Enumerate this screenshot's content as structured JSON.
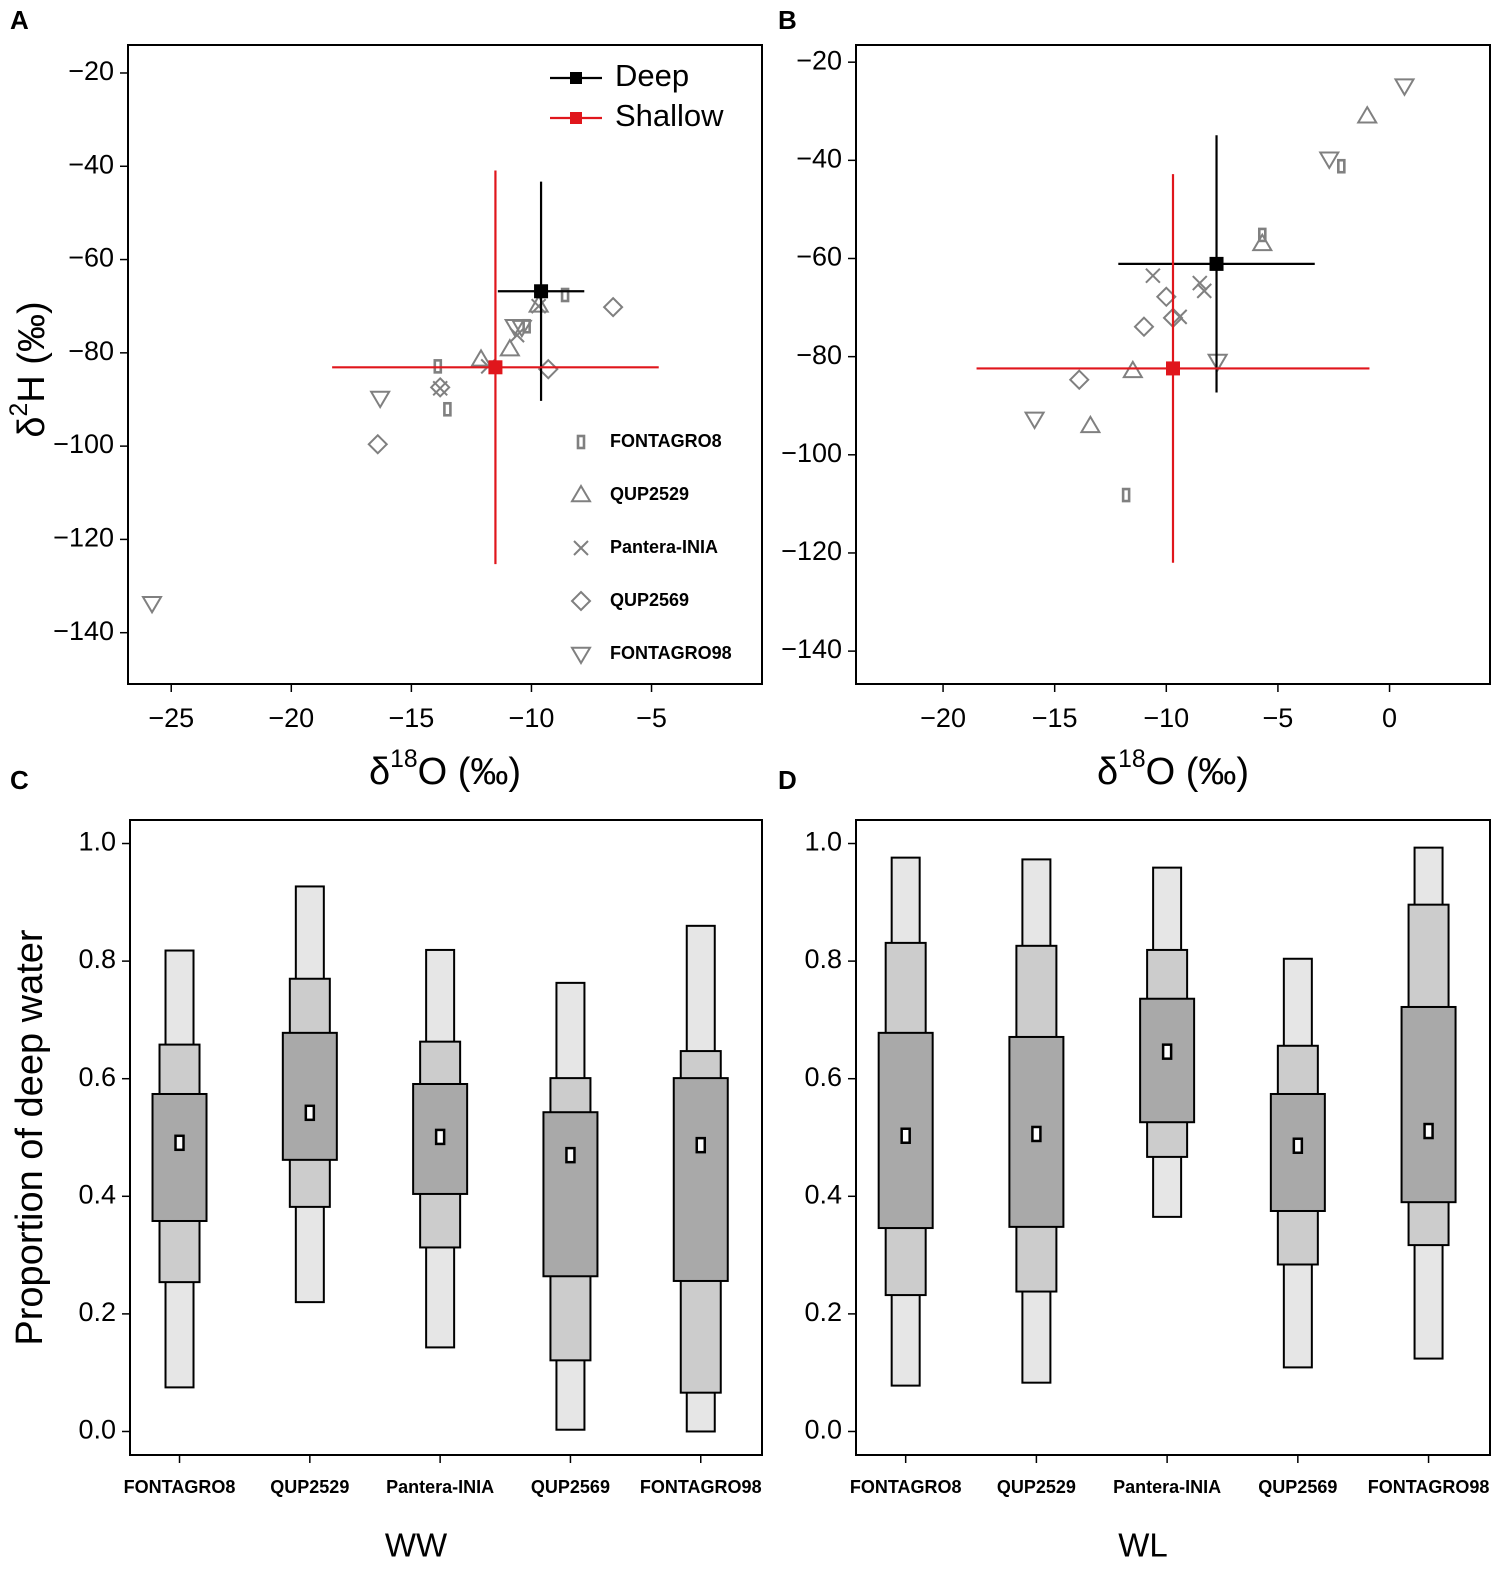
{
  "chart_data": [
    {
      "type": "scatter",
      "panel": "A",
      "xlabel": {
        "prefix": "δ",
        "sup": "18",
        "rest": "O (‰)"
      },
      "ylabel": {
        "prefix": "δ",
        "sup": "2",
        "rest": "H (‰)"
      },
      "xlim": [
        -26.8,
        -0.4
      ],
      "ylim": [
        -151,
        -14
      ],
      "xticks": [
        {
          "value": -25,
          "label": "−25"
        },
        {
          "value": -20,
          "label": "−20"
        },
        {
          "value": -15,
          "label": "−15"
        },
        {
          "value": -10,
          "label": "−10"
        },
        {
          "value": -5,
          "label": "−5"
        }
      ],
      "yticks": [
        {
          "value": -20,
          "label": "−20"
        },
        {
          "value": -40,
          "label": "−40"
        },
        {
          "value": -60,
          "label": "−60"
        },
        {
          "value": -80,
          "label": "−80"
        },
        {
          "value": -100,
          "label": "−100"
        },
        {
          "value": -120,
          "label": "−120"
        },
        {
          "value": -140,
          "label": "−140"
        }
      ],
      "legend": "upper right",
      "marker_legend": "lower right",
      "sources": [
        {
          "name": "Deep",
          "color": "#000000",
          "x": -9.6,
          "y": -66.8,
          "xerr": 1.8,
          "yerr": 23.5
        },
        {
          "name": "Shallow",
          "color": "#e0161c",
          "x": -11.5,
          "y": -83.1,
          "xerr": 6.8,
          "yerr": 42.2
        }
      ],
      "series": [
        {
          "name": "FONTAGRO8",
          "marker": "rect",
          "color": "#808080",
          "x": [
            -13.9,
            -13.5,
            -10.2,
            -8.6
          ],
          "y": [
            -82.9,
            -92.1,
            -74.3,
            -67.6
          ]
        },
        {
          "name": "QUP2529",
          "marker": "triangle",
          "color": "#808080",
          "x": [
            -12.1,
            -10.9,
            -9.7
          ],
          "y": [
            -81.4,
            -79.2,
            -69.8
          ]
        },
        {
          "name": "Pantera-INIA",
          "marker": "cross",
          "color": "#808080",
          "x": [
            -13.8,
            -11.8,
            -10.6,
            -9.7
          ],
          "y": [
            -87.6,
            -82.9,
            -76.2,
            -70
          ]
        },
        {
          "name": "QUP2569",
          "marker": "diamond",
          "color": "#808080",
          "x": [
            -16.4,
            -13.8,
            -9.3,
            -6.6
          ],
          "y": [
            -99.6,
            -87.4,
            -83.5,
            -70.2
          ]
        },
        {
          "name": "FONTAGRO98",
          "marker": "triangle-down",
          "color": "#808080",
          "x": [
            -25.8,
            -16.3,
            -10.7,
            -10.4
          ],
          "y": [
            -133.7,
            -89.7,
            -74.3,
            -74.5
          ]
        }
      ]
    },
    {
      "type": "scatter",
      "panel": "B",
      "xlabel": {
        "prefix": "δ",
        "sup": "18",
        "rest": "O (‰)"
      },
      "xlim": [
        -23.9,
        4.5
      ],
      "ylim": [
        -146.7,
        -16.5
      ],
      "xticks": [
        {
          "value": -20,
          "label": "−20"
        },
        {
          "value": -15,
          "label": "−15"
        },
        {
          "value": -10,
          "label": "−10"
        },
        {
          "value": -5,
          "label": "−5"
        },
        0
      ],
      "yticks": [
        {
          "value": -20,
          "label": "−20"
        },
        {
          "value": -40,
          "label": "−40"
        },
        {
          "value": -60,
          "label": "−60"
        },
        {
          "value": -80,
          "label": "−80"
        },
        {
          "value": -100,
          "label": "−100"
        },
        {
          "value": -120,
          "label": "−120"
        },
        {
          "value": -140,
          "label": "−140"
        }
      ],
      "legend": "none",
      "marker_legend": "none",
      "sources": [
        {
          "name": "Deep",
          "color": "#000000",
          "x": -7.75,
          "y": -61.1,
          "xerr": 4.4,
          "yerr": 26.2
        },
        {
          "name": "Shallow",
          "color": "#e0161c",
          "x": -9.7,
          "y": -82.4,
          "xerr": 8.8,
          "yerr": 39.6
        }
      ],
      "series": [
        {
          "name": "FONTAGRO8",
          "marker": "rect",
          "color": "#808080",
          "x": [
            -2.16,
            -5.7,
            -11.8
          ],
          "y": [
            -41.2,
            -55.2,
            -108.2
          ]
        },
        {
          "name": "QUP2529",
          "marker": "triangle",
          "color": "#808080",
          "x": [
            -1.0,
            -5.7,
            -11.5,
            -13.4
          ],
          "y": [
            -31,
            -57.0,
            -82.9,
            -94.1
          ]
        },
        {
          "name": "Pantera-INIA",
          "marker": "cross",
          "color": "#808080",
          "x": [
            -10.6,
            -8.5,
            -8.3,
            -9.4
          ],
          "y": [
            -63.5,
            -65,
            -66.6,
            -71.9
          ]
        },
        {
          "name": "QUP2569",
          "marker": "diamond",
          "color": "#808080",
          "x": [
            -10.0,
            -9.7,
            -11.0,
            -13.9
          ],
          "y": [
            -67.8,
            -72.1,
            -73.9,
            -84.7
          ]
        },
        {
          "name": "FONTAGRO98",
          "marker": "triangle-down",
          "color": "#808080",
          "x": [
            0.67,
            -2.7,
            -7.7,
            -15.9
          ],
          "y": [
            -24.8,
            -39.7,
            -80.9,
            -92.7
          ]
        }
      ]
    },
    {
      "type": "box",
      "panel": "C",
      "ylabel": "Proportion of deep water",
      "xlabel": "WW",
      "categories": [
        "FONTAGRO8",
        "QUP2529",
        "Pantera-INIA",
        "QUP2569",
        "FONTAGRO98"
      ],
      "ylim": [
        -0.04,
        1.04
      ],
      "yticks": [
        {
          "value": 0,
          "label": "0.0"
        },
        0.2,
        0.4,
        0.6,
        0.8,
        {
          "value": 1,
          "label": "1.0"
        }
      ],
      "band_colors": [
        "#e6e6e6",
        "#cccccc",
        "#a9a9a9"
      ],
      "outer_low": [
        0.075,
        0.22,
        0.143,
        0.003,
        0.0
      ],
      "outer_high": [
        0.818,
        0.927,
        0.819,
        0.763,
        0.86
      ],
      "mid_low": [
        0.254,
        0.382,
        0.313,
        0.121,
        0.066
      ],
      "mid_high": [
        0.658,
        0.77,
        0.663,
        0.601,
        0.647
      ],
      "inner_low": [
        0.358,
        0.462,
        0.404,
        0.264,
        0.256
      ],
      "inner_high": [
        0.574,
        0.678,
        0.591,
        0.543,
        0.601
      ],
      "median": [
        0.491,
        0.542,
        0.501,
        0.47,
        0.487
      ]
    },
    {
      "type": "box",
      "panel": "D",
      "xlabel": "WL",
      "categories": [
        "FONTAGRO8",
        "QUP2529",
        "Pantera-INIA",
        "QUP2569",
        "FONTAGRO98"
      ],
      "ylim": [
        -0.04,
        1.04
      ],
      "yticks": [
        {
          "value": 0,
          "label": "0.0"
        },
        0.2,
        0.4,
        0.6,
        0.8,
        {
          "value": 1,
          "label": "1.0"
        }
      ],
      "band_colors": [
        "#e6e6e6",
        "#cccccc",
        "#a9a9a9"
      ],
      "outer_low": [
        0.078,
        0.083,
        0.365,
        0.109,
        0.124
      ],
      "outer_high": [
        0.976,
        0.973,
        0.959,
        0.804,
        0.993
      ],
      "mid_low": [
        0.232,
        0.238,
        0.467,
        0.284,
        0.317
      ],
      "mid_high": [
        0.831,
        0.826,
        0.819,
        0.656,
        0.896
      ],
      "inner_low": [
        0.346,
        0.348,
        0.526,
        0.375,
        0.39
      ],
      "inner_high": [
        0.678,
        0.671,
        0.736,
        0.574,
        0.722
      ],
      "median": [
        0.503,
        0.506,
        0.646,
        0.486,
        0.511
      ]
    }
  ]
}
